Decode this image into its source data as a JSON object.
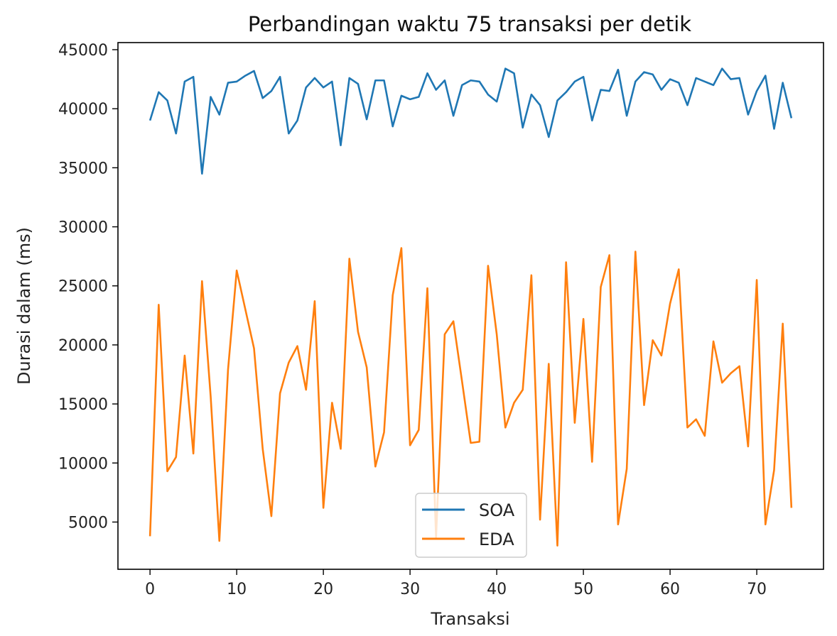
{
  "chart_data": {
    "type": "line",
    "title": "Perbandingan waktu 75 transaksi per detik",
    "xlabel": "Transaksi",
    "ylabel": "Durasi dalam (ms)",
    "xlim": [
      -3.7,
      77.7
    ],
    "ylim": [
      1000,
      45600
    ],
    "xticks": [
      0,
      10,
      20,
      30,
      40,
      50,
      60,
      70
    ],
    "yticks": [
      5000,
      10000,
      15000,
      20000,
      25000,
      30000,
      35000,
      40000,
      45000
    ],
    "grid": false,
    "legend_position": "lower-center",
    "x": [
      0,
      1,
      2,
      3,
      4,
      5,
      6,
      7,
      8,
      9,
      10,
      11,
      12,
      13,
      14,
      15,
      16,
      17,
      18,
      19,
      20,
      21,
      22,
      23,
      24,
      25,
      26,
      27,
      28,
      29,
      30,
      31,
      32,
      33,
      34,
      35,
      36,
      37,
      38,
      39,
      40,
      41,
      42,
      43,
      44,
      45,
      46,
      47,
      48,
      49,
      50,
      51,
      52,
      53,
      54,
      55,
      56,
      57,
      58,
      59,
      60,
      61,
      62,
      63,
      64,
      65,
      66,
      67,
      68,
      69,
      70,
      71,
      72,
      73,
      74
    ],
    "series": [
      {
        "name": "SOA",
        "color": "#1f77b4",
        "values": [
          39000,
          41400,
          40700,
          37900,
          42300,
          42700,
          34500,
          41000,
          39500,
          42200,
          42300,
          42800,
          43200,
          40900,
          41500,
          42700,
          37900,
          39000,
          41800,
          42600,
          41800,
          42300,
          36900,
          42600,
          42100,
          39100,
          42400,
          42400,
          38500,
          41100,
          40800,
          41000,
          43000,
          41600,
          42400,
          39400,
          42000,
          42400,
          42300,
          41200,
          40600,
          43400,
          43000,
          38400,
          41200,
          40300,
          37600,
          40700,
          41400,
          42300,
          42700,
          39000,
          41600,
          41500,
          43300,
          39400,
          42300,
          43100,
          42900,
          41600,
          42500,
          42200,
          40300,
          42600,
          42300,
          42000,
          43400,
          42500,
          42600,
          39500,
          41500,
          42800,
          38300,
          42200,
          39200
        ]
      },
      {
        "name": "EDA",
        "color": "#ff7f0e",
        "values": [
          3800,
          23400,
          9300,
          10500,
          19100,
          10800,
          25400,
          15600,
          3400,
          17900,
          26300,
          23000,
          19700,
          11200,
          5500,
          15900,
          18500,
          19900,
          16200,
          23700,
          6200,
          15100,
          11200,
          27300,
          21100,
          18100,
          9700,
          12600,
          24200,
          28200,
          11500,
          12800,
          24800,
          3700,
          20900,
          22000,
          16900,
          11700,
          11800,
          26700,
          20900,
          13000,
          15100,
          16200,
          25900,
          5200,
          18400,
          3000,
          27000,
          13400,
          22200,
          10100,
          24900,
          27600,
          4800,
          9500,
          27900,
          14900,
          20400,
          19100,
          23500,
          26400,
          13000,
          13700,
          12300,
          20300,
          16800,
          17600,
          18200,
          11400,
          25500,
          4800,
          9400,
          21800,
          6200
        ]
      }
    ]
  }
}
